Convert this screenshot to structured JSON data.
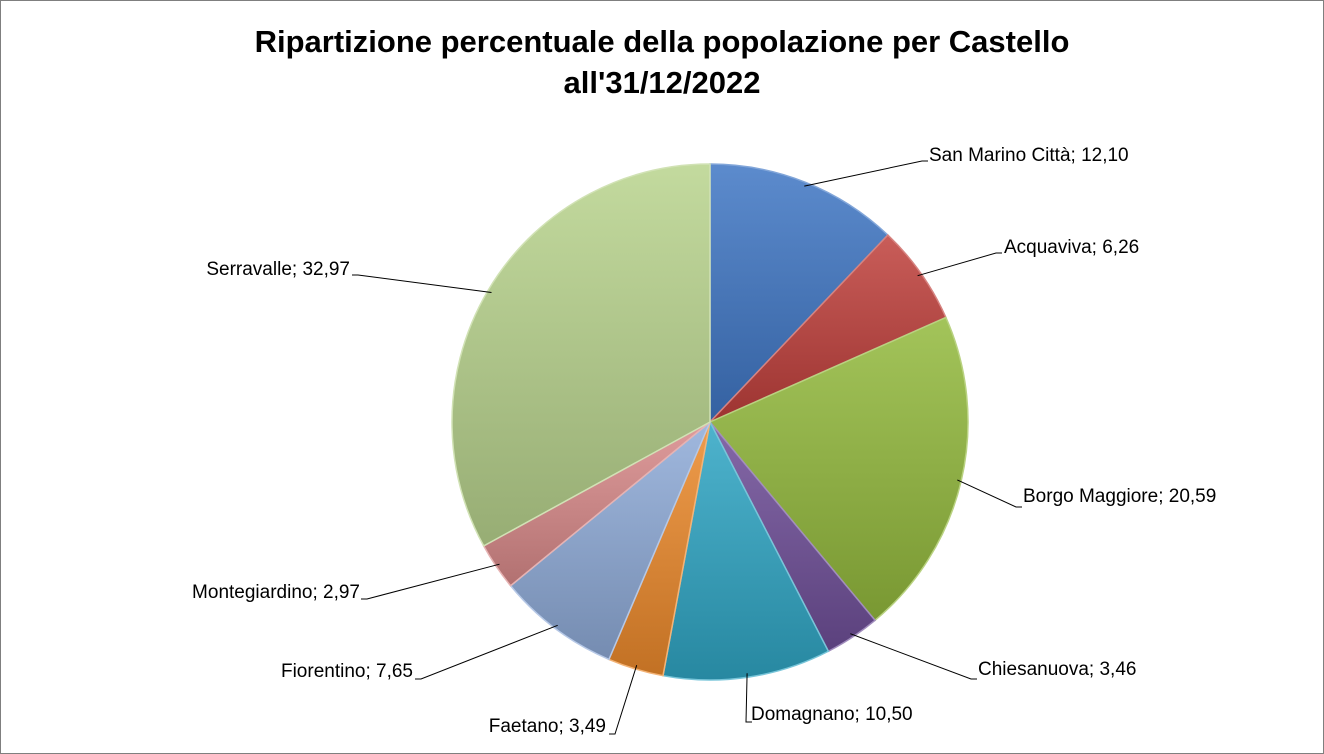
{
  "chart_data": {
    "type": "pie",
    "title": "Ripartizione percentuale della popolazione per Castello",
    "subtitle": "all'31/12/2022",
    "categories": [
      "San Marino Città",
      "Acquaviva",
      "Borgo Maggiore",
      "Chiesanuova",
      "Domagnano",
      "Faetano",
      "Fiorentino",
      "Montegiardino",
      "Serravalle"
    ],
    "values": [
      12.1,
      6.26,
      20.59,
      3.46,
      10.5,
      3.49,
      7.65,
      2.97,
      32.97
    ],
    "labels": [
      "San Marino Città; 12,10",
      "Acquaviva; 6,26",
      "Borgo Maggiore; 20,59",
      "Chiesanuova; 3,46",
      "Domagnano; 10,50",
      "Faetano; 3,49",
      "Fiorentino; 7,65",
      "Montegiardino; 2,97",
      "Serravalle; 32,97"
    ],
    "colors": [
      "#3f76c4",
      "#c0403c",
      "#93b93d",
      "#6f4f99",
      "#2fa6c4",
      "#ec8a2c",
      "#8fabd8",
      "#d98a8a",
      "#b8d38d"
    ],
    "start_angle_deg": 0,
    "direction": "clockwise",
    "legend": "none"
  }
}
